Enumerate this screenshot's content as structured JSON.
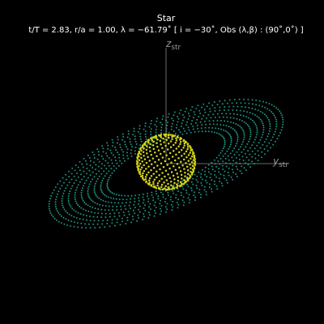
{
  "title": "Star",
  "subtitle": "t/T = 2.83, r/a = 1.00, λ = −61.79˚ [ i = −30˚, Obs (λ,β) : (90˚,0˚) ]",
  "axes": {
    "z_label": "z",
    "z_sub": "str",
    "y_label": "y",
    "y_sub": "str"
  },
  "colors": {
    "background": "#000000",
    "axis_line": "#8a8a8a",
    "axis_text": "#9a9a9a",
    "star_points": "#d7d41a",
    "disk_points": "#1f8f7c"
  },
  "scene": {
    "star_shape": "sphere",
    "disk_shape": "tilted ring",
    "inclination_deg": -30
  }
}
